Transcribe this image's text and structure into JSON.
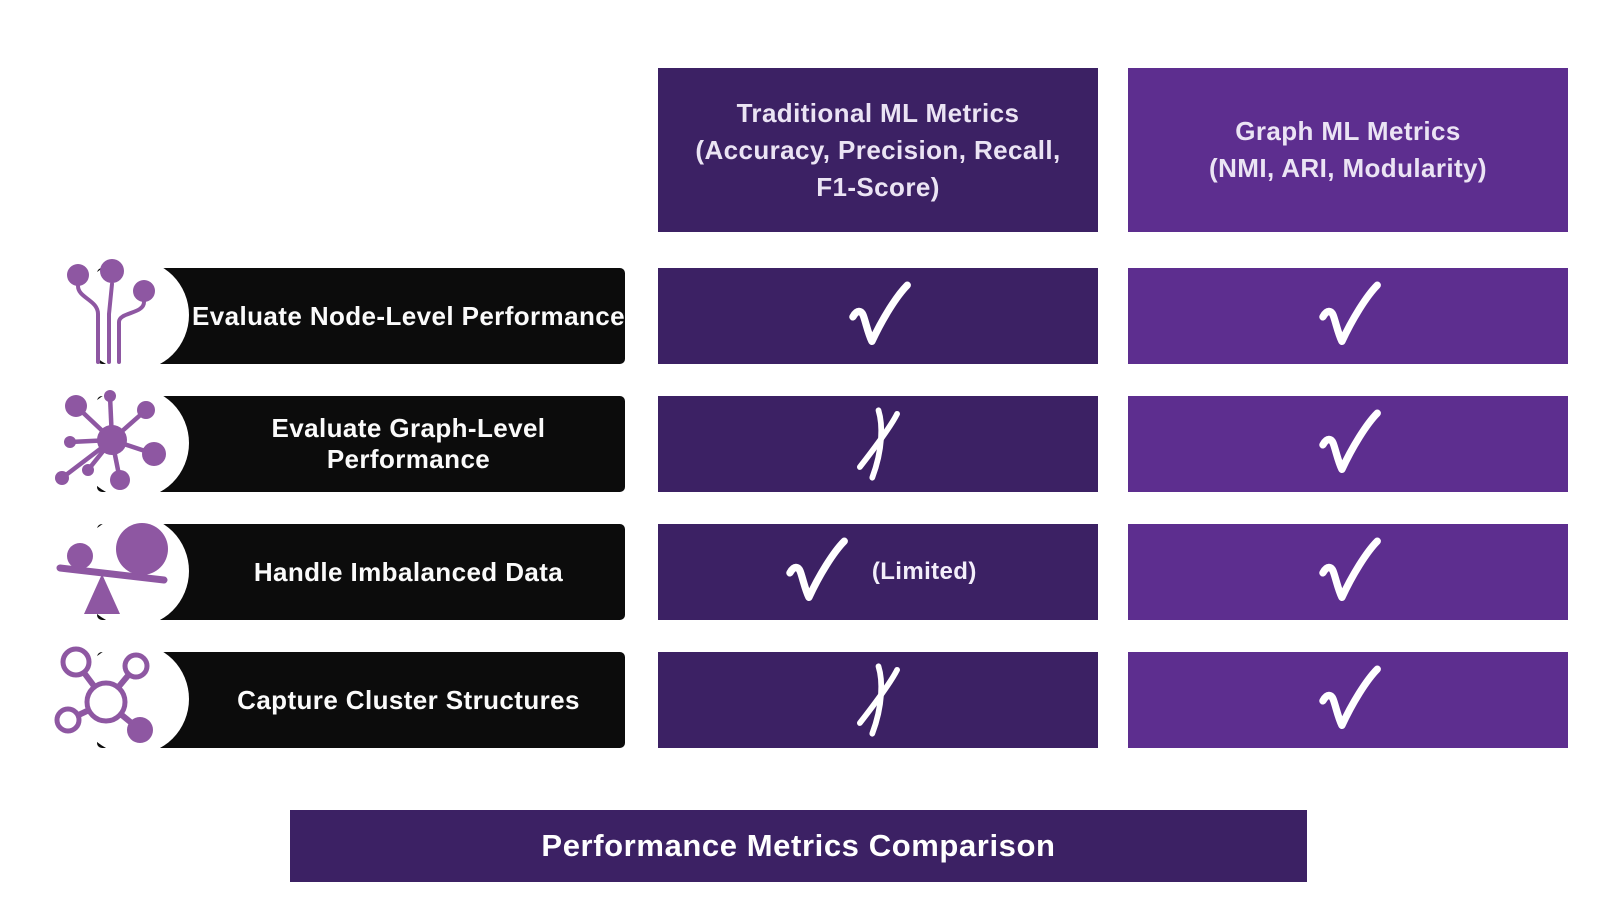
{
  "colors": {
    "dark_purple": "#3c2164",
    "light_purple": "#5d2e8f",
    "black_bar": "#0c0c0c",
    "icon_purple": "#8e57a2",
    "mark_white": "#ffffff"
  },
  "columns": [
    {
      "id": "traditional",
      "label": "Traditional ML Metrics\n(Accuracy, Precision, Recall,\nF1-Score)"
    },
    {
      "id": "graph",
      "label": "Graph ML Metrics\n(NMI, ARI, Modularity)"
    }
  ],
  "rows": [
    {
      "label": "Evaluate Node-Level Performance",
      "icon": "node-pins-icon",
      "cells": [
        {
          "column": "traditional",
          "mark": "check",
          "note": ""
        },
        {
          "column": "graph",
          "mark": "check",
          "note": ""
        }
      ]
    },
    {
      "label": "Evaluate Graph-Level Performance",
      "icon": "network-hub-icon",
      "cells": [
        {
          "column": "traditional",
          "mark": "cross",
          "note": ""
        },
        {
          "column": "graph",
          "mark": "check",
          "note": ""
        }
      ]
    },
    {
      "label": "Handle Imbalanced Data",
      "icon": "balance-scale-icon",
      "cells": [
        {
          "column": "traditional",
          "mark": "check",
          "note": "(Limited)"
        },
        {
          "column": "graph",
          "mark": "check",
          "note": ""
        }
      ]
    },
    {
      "label": "Capture Cluster Structures",
      "icon": "cluster-network-icon",
      "cells": [
        {
          "column": "traditional",
          "mark": "cross",
          "note": ""
        },
        {
          "column": "graph",
          "mark": "check",
          "note": ""
        }
      ]
    }
  ],
  "footer": {
    "title": "Performance Metrics Comparison"
  }
}
